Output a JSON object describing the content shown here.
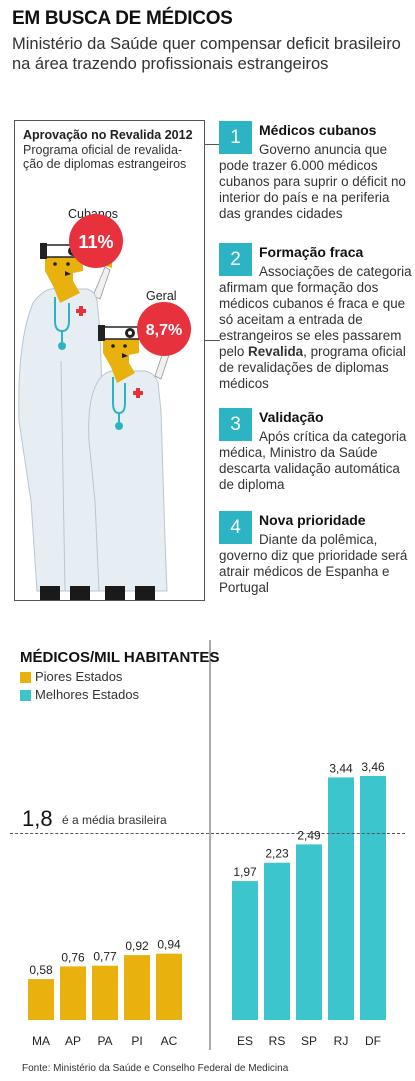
{
  "header": {
    "title": "EM BUSCA DE MÉDICOS",
    "subtitle": "Ministério da Saúde quer compensar deficit brasileiro na área trazendo profissionais estrangeiros"
  },
  "panel": {
    "title": "Aprovação no Revalida 2012",
    "subtitle": "Programa oficial de revalida- ção de diplomas estrangeiros",
    "cubanos_label": "Cubanos",
    "cubanos_value": "11%",
    "geral_label": "Geral",
    "geral_value": "8,7%"
  },
  "steps": [
    {
      "number": "1",
      "title": "Médicos cubanos",
      "text": "Governo anuncia que pode trazer 6.000 médicos cubanos para suprir o déficit no interior do país e na periferia das grandes cidades"
    },
    {
      "number": "2",
      "title": "Formação fraca",
      "text_before": "Associações de categoria afirmam que formação dos médicos cubanos é fraca e que só aceitam a entrada de estrangeiros se eles passarem pelo ",
      "text_bold": "Revalida",
      "text_after": ", programa oficial de revalidações de diplomas médicos"
    },
    {
      "number": "3",
      "title": "Validação",
      "text": "Após crítica da categoria médica, Ministro da Saúde descarta validação automática de diploma"
    },
    {
      "number": "4",
      "title": "Nova prioridade",
      "text": "Diante da polêmica, governo diz que prioridade será atrair médicos de Espanha e Portugal"
    }
  ],
  "average": {
    "value": "1,8",
    "label": "é a média brasileira"
  },
  "source": "Fonte: Ministério da Saúde e Conselho Federal de Medicina",
  "colors": {
    "accent": "#2cb4c4",
    "worst": "#e8b10e",
    "best": "#3cc5cc",
    "red": "#e7313d"
  },
  "chart_data": {
    "type": "bar",
    "title": "MÉDICOS/MIL HABITANTES",
    "ylim": [
      0,
      3.6
    ],
    "reference_line": 1.8,
    "series": [
      {
        "name": "Piores Estados",
        "categories": [
          "MA",
          "AP",
          "PA",
          "PI",
          "AC"
        ],
        "values": [
          0.58,
          0.76,
          0.77,
          0.92,
          0.94
        ],
        "labels": [
          "0,58",
          "0,76",
          "0,77",
          "0,92",
          "0,94"
        ]
      },
      {
        "name": "Melhores Estados",
        "categories": [
          "ES",
          "RS",
          "SP",
          "RJ",
          "DF"
        ],
        "values": [
          1.97,
          2.23,
          2.49,
          3.44,
          3.46
        ],
        "labels": [
          "1,97",
          "2,23",
          "2,49",
          "3,44",
          "3,46"
        ]
      }
    ]
  }
}
